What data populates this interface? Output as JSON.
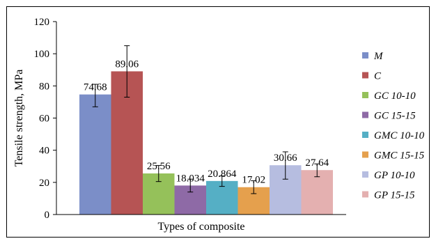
{
  "chart_data": {
    "type": "bar",
    "xlabel": "Types of composite",
    "ylabel": "Tensile strength, MPa",
    "ylim": [
      0,
      120
    ],
    "yticks": [
      0,
      20,
      40,
      60,
      80,
      100,
      120
    ],
    "legend_position": "right",
    "grid": false,
    "series": [
      {
        "name": "M",
        "value": 74.68,
        "label": "74.68",
        "error": [
          67,
          81
        ],
        "color": "#7b8ec8"
      },
      {
        "name": "C",
        "value": 89.06,
        "label": "89.06",
        "error": [
          73,
          105
        ],
        "color": "#b65454"
      },
      {
        "name": "GC 10-10",
        "value": 25.56,
        "label": "25.56",
        "error": [
          20.5,
          30.5
        ],
        "color": "#95c15a"
      },
      {
        "name": "GC 15-15",
        "value": 18.034,
        "label": "18.034",
        "error": [
          14,
          22
        ],
        "color": "#8e6aa6"
      },
      {
        "name": "GMC 10-10",
        "value": 20.864,
        "label": "20.864",
        "error": [
          17.5,
          24
        ],
        "color": "#55afc5"
      },
      {
        "name": "GMC 15-15",
        "value": 17.02,
        "label": "17.02",
        "error": [
          13,
          21
        ],
        "color": "#e5a04d"
      },
      {
        "name": "GP 10-10",
        "value": 30.66,
        "label": "30.66",
        "error": [
          22,
          39
        ],
        "color": "#b6bde0"
      },
      {
        "name": "GP 15-15",
        "value": 27.64,
        "label": "27.64",
        "error": [
          23.5,
          31.5
        ],
        "color": "#e4b0b0"
      }
    ]
  }
}
